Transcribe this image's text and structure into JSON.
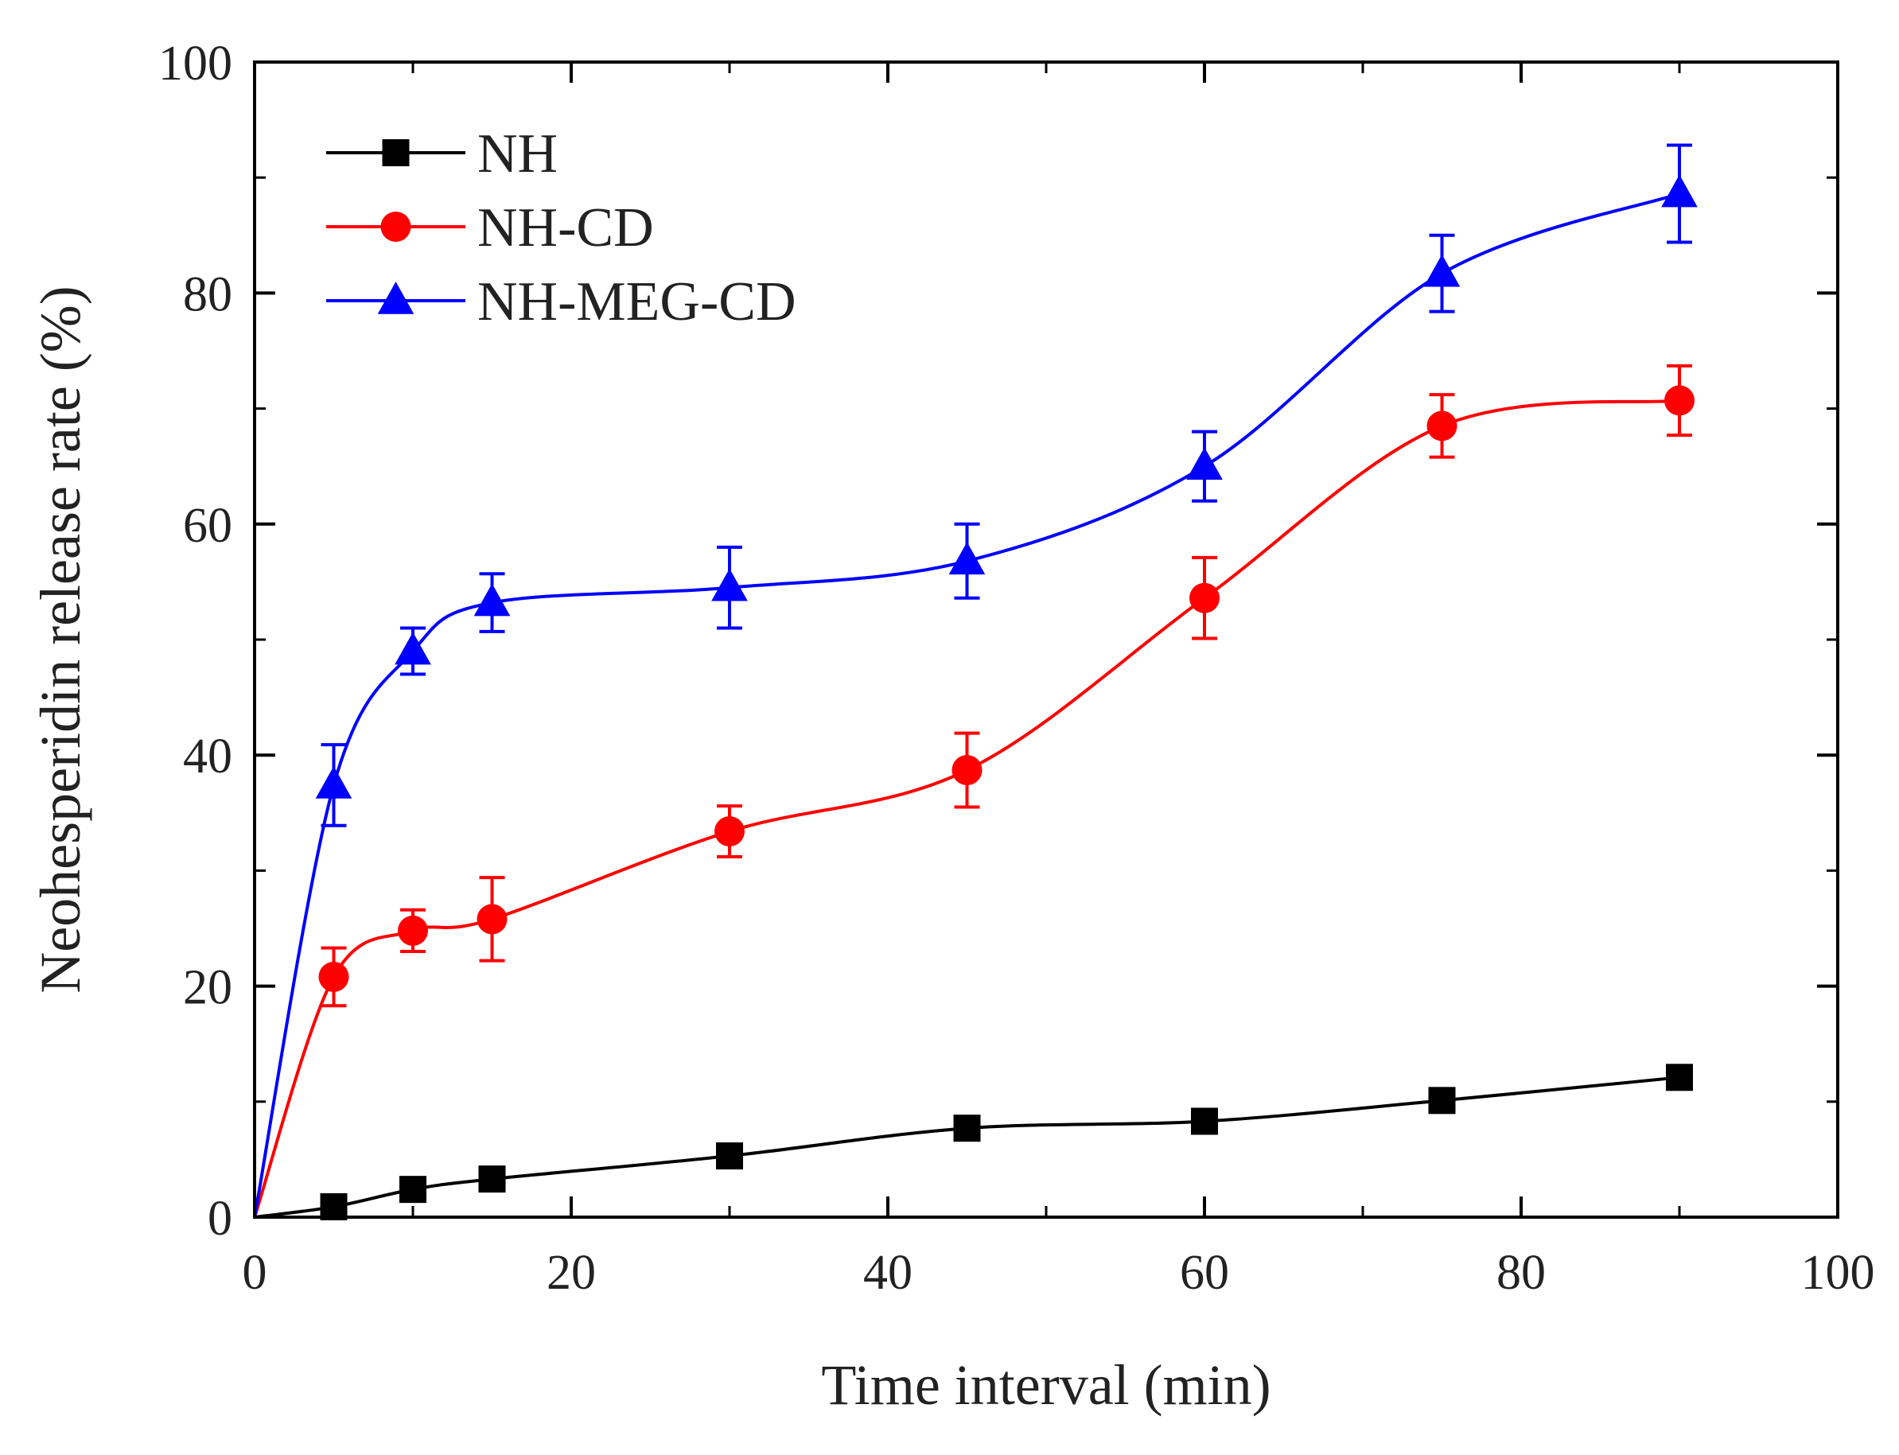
{
  "chart_data": {
    "type": "line",
    "title": "",
    "xlabel": "Time interval (min)",
    "ylabel": "Neohesperidin release rate (%)",
    "xlim": [
      0,
      100
    ],
    "ylim": [
      0,
      100
    ],
    "xticks": [
      "0",
      "20",
      "40",
      "60",
      "80",
      "100"
    ],
    "yticks": [
      "0",
      "20",
      "40",
      "60",
      "80",
      "100"
    ],
    "grid": false,
    "legend_position": "top-left",
    "series": [
      {
        "name": "NH",
        "color": "#000000",
        "marker": "square",
        "x": [
          0,
          5,
          10,
          15,
          30,
          45,
          60,
          75,
          90
        ],
        "values": [
          0,
          0.9,
          2.4,
          3.3,
          5.3,
          7.7,
          8.3,
          10.1,
          12.1
        ],
        "errors": [
          0,
          0,
          0,
          0,
          0,
          0,
          0,
          0,
          0
        ]
      },
      {
        "name": "NH-CD",
        "color": "#ff0000",
        "marker": "circle",
        "x": [
          0,
          5,
          10,
          15,
          30,
          45,
          60,
          75,
          90
        ],
        "values": [
          0,
          20.8,
          24.8,
          25.8,
          33.4,
          38.7,
          53.6,
          68.5,
          70.7
        ],
        "errors": [
          0,
          2.5,
          1.8,
          3.6,
          2.2,
          3.2,
          3.5,
          2.7,
          3.0
        ]
      },
      {
        "name": "NH-MEG-CD",
        "color": "#0000ff",
        "marker": "triangle",
        "x": [
          0,
          5,
          10,
          15,
          30,
          45,
          60,
          75,
          90
        ],
        "values": [
          0,
          37.4,
          49.0,
          53.2,
          54.5,
          56.8,
          65.0,
          81.7,
          88.6
        ],
        "errors": [
          0,
          3.5,
          2.0,
          2.5,
          3.5,
          3.2,
          3.0,
          3.3,
          4.2
        ]
      }
    ]
  }
}
